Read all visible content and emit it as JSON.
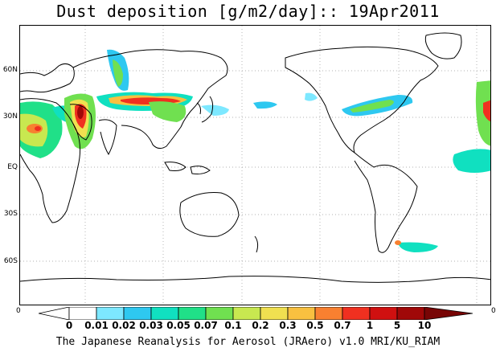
{
  "title": "Dust deposition [g/m2/day]:: 19Apr2011",
  "map": {
    "projection": "cylindrical-equidistant, centered on Pacific",
    "lat_labels": [
      "60N",
      "30N",
      "EQ",
      "30S",
      "60S"
    ],
    "gridlines": "dotted",
    "ocean_color": "#ffffff",
    "coastline_color": "#000000"
  },
  "colorbar": {
    "left_end_label": "0",
    "right_end_label": "0",
    "levels": [
      "0",
      "0.01",
      "0.02",
      "0.03",
      "0.05",
      "0.07",
      "0.1",
      "0.2",
      "0.3",
      "0.5",
      "0.7",
      "1",
      "5",
      "10"
    ],
    "colors": [
      "#ffffff",
      "#ffffff",
      "#7de8ff",
      "#2ec8f0",
      "#10e0c0",
      "#20e088",
      "#70e050",
      "#c8e850",
      "#f0e050",
      "#f8c040",
      "#f88030",
      "#f03020",
      "#d01010",
      "#a00808",
      "#780505"
    ]
  },
  "footer": "The Japanese Reanalysis for Aerosol (JRAero) v1.0 MRI/KU_RIAM"
}
